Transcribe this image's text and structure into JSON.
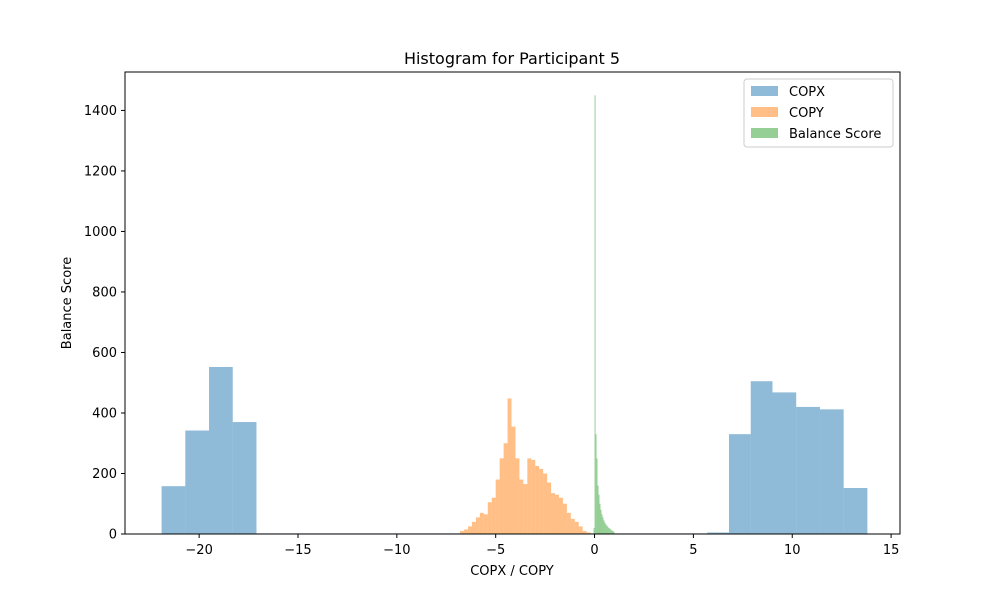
{
  "chart_data": {
    "type": "histogram",
    "title": "Histogram for Participant 5",
    "xlabel": "COPX / COPY",
    "ylabel": "Balance Score",
    "xlim": [
      -23.75,
      15.45
    ],
    "ylim": [
      0,
      1527
    ],
    "xticks": [
      -20,
      -15,
      -10,
      -5,
      0,
      5,
      10,
      15
    ],
    "yticks": [
      0,
      200,
      400,
      600,
      800,
      1000,
      1200,
      1400
    ],
    "grid": false,
    "legend_position": "top-right",
    "series": [
      {
        "name": "COPX",
        "color": "#1f77b4",
        "opacity": 0.5,
        "bins": [
          [
            -21.9,
            -20.7,
            158
          ],
          [
            -20.7,
            -19.5,
            342
          ],
          [
            -19.5,
            -18.3,
            552
          ],
          [
            -18.3,
            -17.1,
            370
          ],
          [
            -17.1,
            -15.9,
            2
          ],
          [
            -15.9,
            -14.7,
            2
          ],
          [
            -14.7,
            -13.5,
            2
          ],
          [
            -13.5,
            -12.3,
            2
          ],
          [
            -12.3,
            -11.1,
            2
          ],
          [
            -11.1,
            -9.9,
            2
          ],
          [
            -9.9,
            -8.7,
            2
          ],
          [
            -8.7,
            -7.5,
            2
          ],
          [
            -7.5,
            -6.3,
            2
          ],
          [
            -6.3,
            -5.1,
            2
          ],
          [
            -5.1,
            -3.9,
            2
          ],
          [
            -3.9,
            -2.7,
            2
          ],
          [
            -2.7,
            -1.5,
            2
          ],
          [
            -1.5,
            -0.3,
            2
          ],
          [
            -0.3,
            0.9,
            2
          ],
          [
            0.9,
            2.1,
            2
          ],
          [
            2.1,
            3.3,
            2
          ],
          [
            3.3,
            4.5,
            2
          ],
          [
            4.5,
            5.7,
            2
          ],
          [
            5.7,
            6.8,
            5
          ],
          [
            6.8,
            7.9,
            330
          ],
          [
            7.9,
            9.0,
            505
          ],
          [
            9.0,
            10.2,
            468
          ],
          [
            10.2,
            11.4,
            420
          ],
          [
            11.4,
            12.6,
            412
          ],
          [
            12.6,
            13.8,
            152
          ]
        ]
      },
      {
        "name": "COPY",
        "color": "#ff7f0e",
        "opacity": 0.5,
        "bins": [
          [
            -6.8,
            -6.6,
            10
          ],
          [
            -6.6,
            -6.4,
            15
          ],
          [
            -6.4,
            -6.2,
            25
          ],
          [
            -6.2,
            -6.0,
            40
          ],
          [
            -6.0,
            -5.8,
            55
          ],
          [
            -5.8,
            -5.6,
            70
          ],
          [
            -5.6,
            -5.4,
            65
          ],
          [
            -5.4,
            -5.2,
            105
          ],
          [
            -5.2,
            -5.0,
            120
          ],
          [
            -5.0,
            -4.8,
            180
          ],
          [
            -4.8,
            -4.6,
            250
          ],
          [
            -4.6,
            -4.4,
            300
          ],
          [
            -4.4,
            -4.2,
            448
          ],
          [
            -4.2,
            -4.0,
            355
          ],
          [
            -4.0,
            -3.8,
            250
          ],
          [
            -3.8,
            -3.6,
            180
          ],
          [
            -3.6,
            -3.4,
            165
          ],
          [
            -3.4,
            -3.2,
            250
          ],
          [
            -3.2,
            -3.0,
            245
          ],
          [
            -3.0,
            -2.8,
            225
          ],
          [
            -2.8,
            -2.6,
            215
          ],
          [
            -2.6,
            -2.4,
            200
          ],
          [
            -2.4,
            -2.2,
            170
          ],
          [
            -2.2,
            -2.0,
            135
          ],
          [
            -2.0,
            -1.8,
            130
          ],
          [
            -1.8,
            -1.6,
            120
          ],
          [
            -1.6,
            -1.4,
            100
          ],
          [
            -1.4,
            -1.2,
            70
          ],
          [
            -1.2,
            -1.0,
            50
          ],
          [
            -1.0,
            -0.8,
            40
          ],
          [
            -0.8,
            -0.6,
            25
          ],
          [
            -0.6,
            -0.4,
            10
          ],
          [
            -0.4,
            -0.2,
            5
          ]
        ]
      },
      {
        "name": "Balance Score",
        "color": "#2ca02c",
        "opacity": 0.5,
        "bins": [
          [
            -0.05,
            0.0,
            20
          ],
          [
            0.0,
            0.05,
            1450
          ],
          [
            0.05,
            0.1,
            330
          ],
          [
            0.1,
            0.15,
            250
          ],
          [
            0.15,
            0.2,
            160
          ],
          [
            0.2,
            0.25,
            130
          ],
          [
            0.25,
            0.3,
            100
          ],
          [
            0.3,
            0.35,
            80
          ],
          [
            0.35,
            0.4,
            65
          ],
          [
            0.4,
            0.45,
            55
          ],
          [
            0.45,
            0.5,
            45
          ],
          [
            0.5,
            0.55,
            38
          ],
          [
            0.55,
            0.6,
            32
          ],
          [
            0.6,
            0.65,
            28
          ],
          [
            0.65,
            0.7,
            24
          ],
          [
            0.7,
            0.75,
            20
          ],
          [
            0.75,
            0.8,
            18
          ],
          [
            0.8,
            0.85,
            15
          ],
          [
            0.85,
            0.9,
            12
          ],
          [
            0.9,
            0.95,
            10
          ],
          [
            0.95,
            1.0,
            8
          ]
        ]
      }
    ]
  }
}
